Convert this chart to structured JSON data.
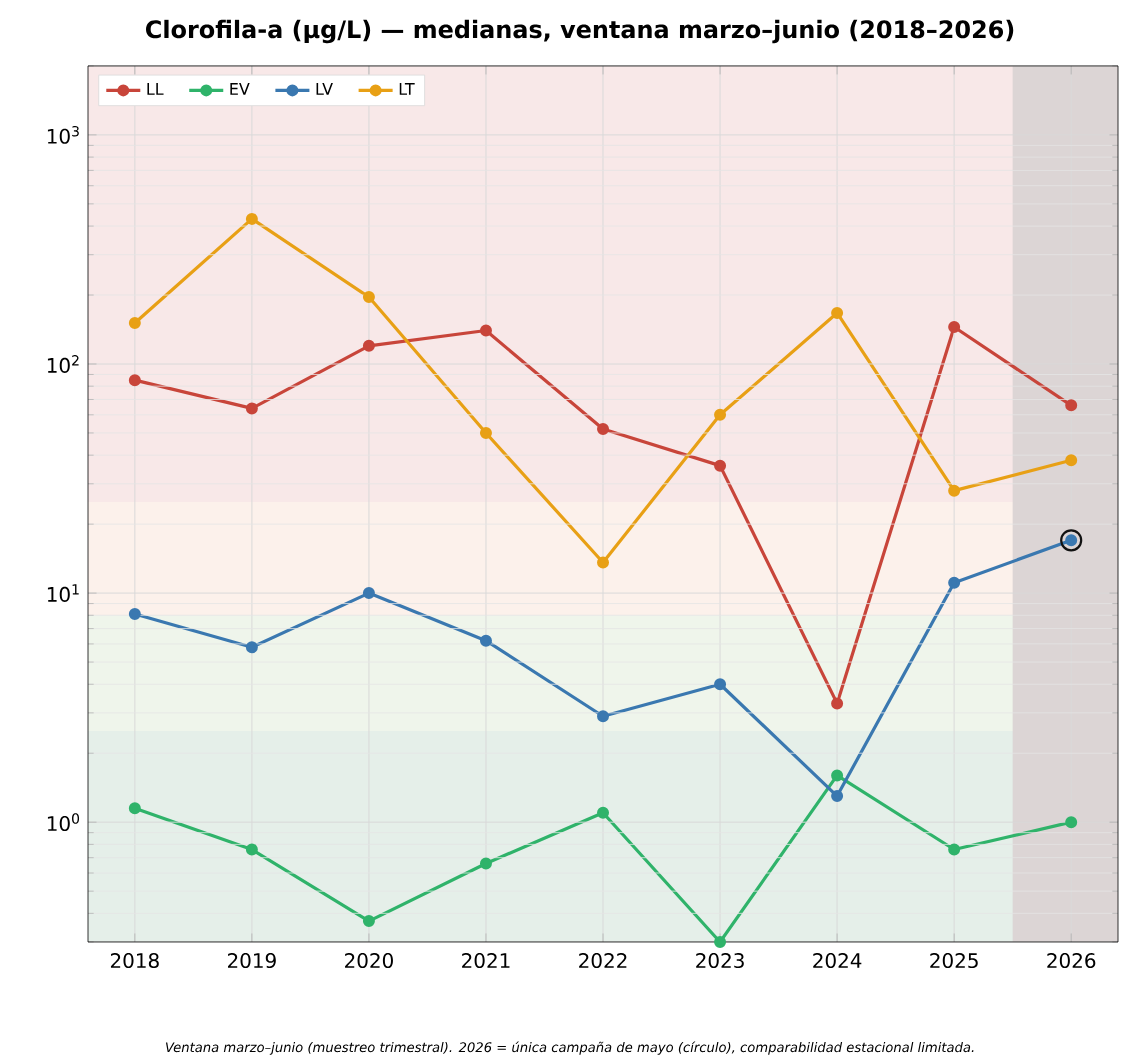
{
  "chart_data": {
    "type": "line",
    "title": "Clorofila-a (µg/L) — medianas, ventana marzo–junio (2018–2026)",
    "annotations": [
      "Ventana marzo–junio (muestreo trimestral). 2026 = única campaña de mayo (círculo), comparabilidad estacional limitada."
    ],
    "x": [
      2018,
      2019,
      2020,
      2021,
      2022,
      2023,
      2024,
      2025,
      2026
    ],
    "series": [
      {
        "name": "LL",
        "color": "#c8453a",
        "values": [
          85,
          64,
          120,
          140,
          52,
          36,
          3.3,
          145,
          66
        ]
      },
      {
        "name": "EV",
        "color": "#2fb36a",
        "values": [
          1.15,
          0.76,
          0.37,
          0.66,
          1.1,
          0.3,
          1.6,
          0.76,
          1.0
        ]
      },
      {
        "name": "LV",
        "color": "#3a78b0",
        "values": [
          8.1,
          5.8,
          10,
          6.2,
          2.9,
          4.0,
          1.3,
          11.1,
          17
        ]
      },
      {
        "name": "LT",
        "color": "#e8a015",
        "values": [
          151,
          430,
          196,
          50,
          13.6,
          60,
          167,
          28,
          38
        ]
      },
      {
        "type": "scatter",
        "color": "#111111",
        "x": [
          2026
        ],
        "values": [
          17
        ]
      }
    ],
    "bands": [
      {
        "axis": "y",
        "from": 25,
        "to": 2000,
        "color": "#f8e8e8"
      },
      {
        "axis": "y",
        "from": 8,
        "to": 25,
        "color": "#fcf1eb"
      },
      {
        "axis": "y",
        "from": 2.5,
        "to": 8,
        "color": "#eff5eb"
      },
      {
        "axis": "y",
        "from": 0.3,
        "to": 2.5,
        "color": "#e5efe9"
      },
      {
        "axis": "x",
        "from": 2025.5,
        "to": 2026.4,
        "color": "#dcd5d5"
      }
    ],
    "log": "y",
    "grid": true,
    "legend": "top left",
    "marker": "circle",
    "xlim": [
      2017.6,
      2026.4
    ],
    "ylim": [
      0.3,
      2000
    ],
    "xticks": [
      2018,
      2019,
      2020,
      2021,
      2022,
      2023,
      2024,
      2025,
      2026
    ],
    "yticks": [
      {
        "value": 1,
        "label": "10$^{0}$"
      },
      {
        "value": 10,
        "label": "10$^{1}$"
      },
      {
        "value": 100,
        "label": "10$^{2}$"
      },
      {
        "value": 1000,
        "label": "10$^{3}$"
      }
    ]
  }
}
